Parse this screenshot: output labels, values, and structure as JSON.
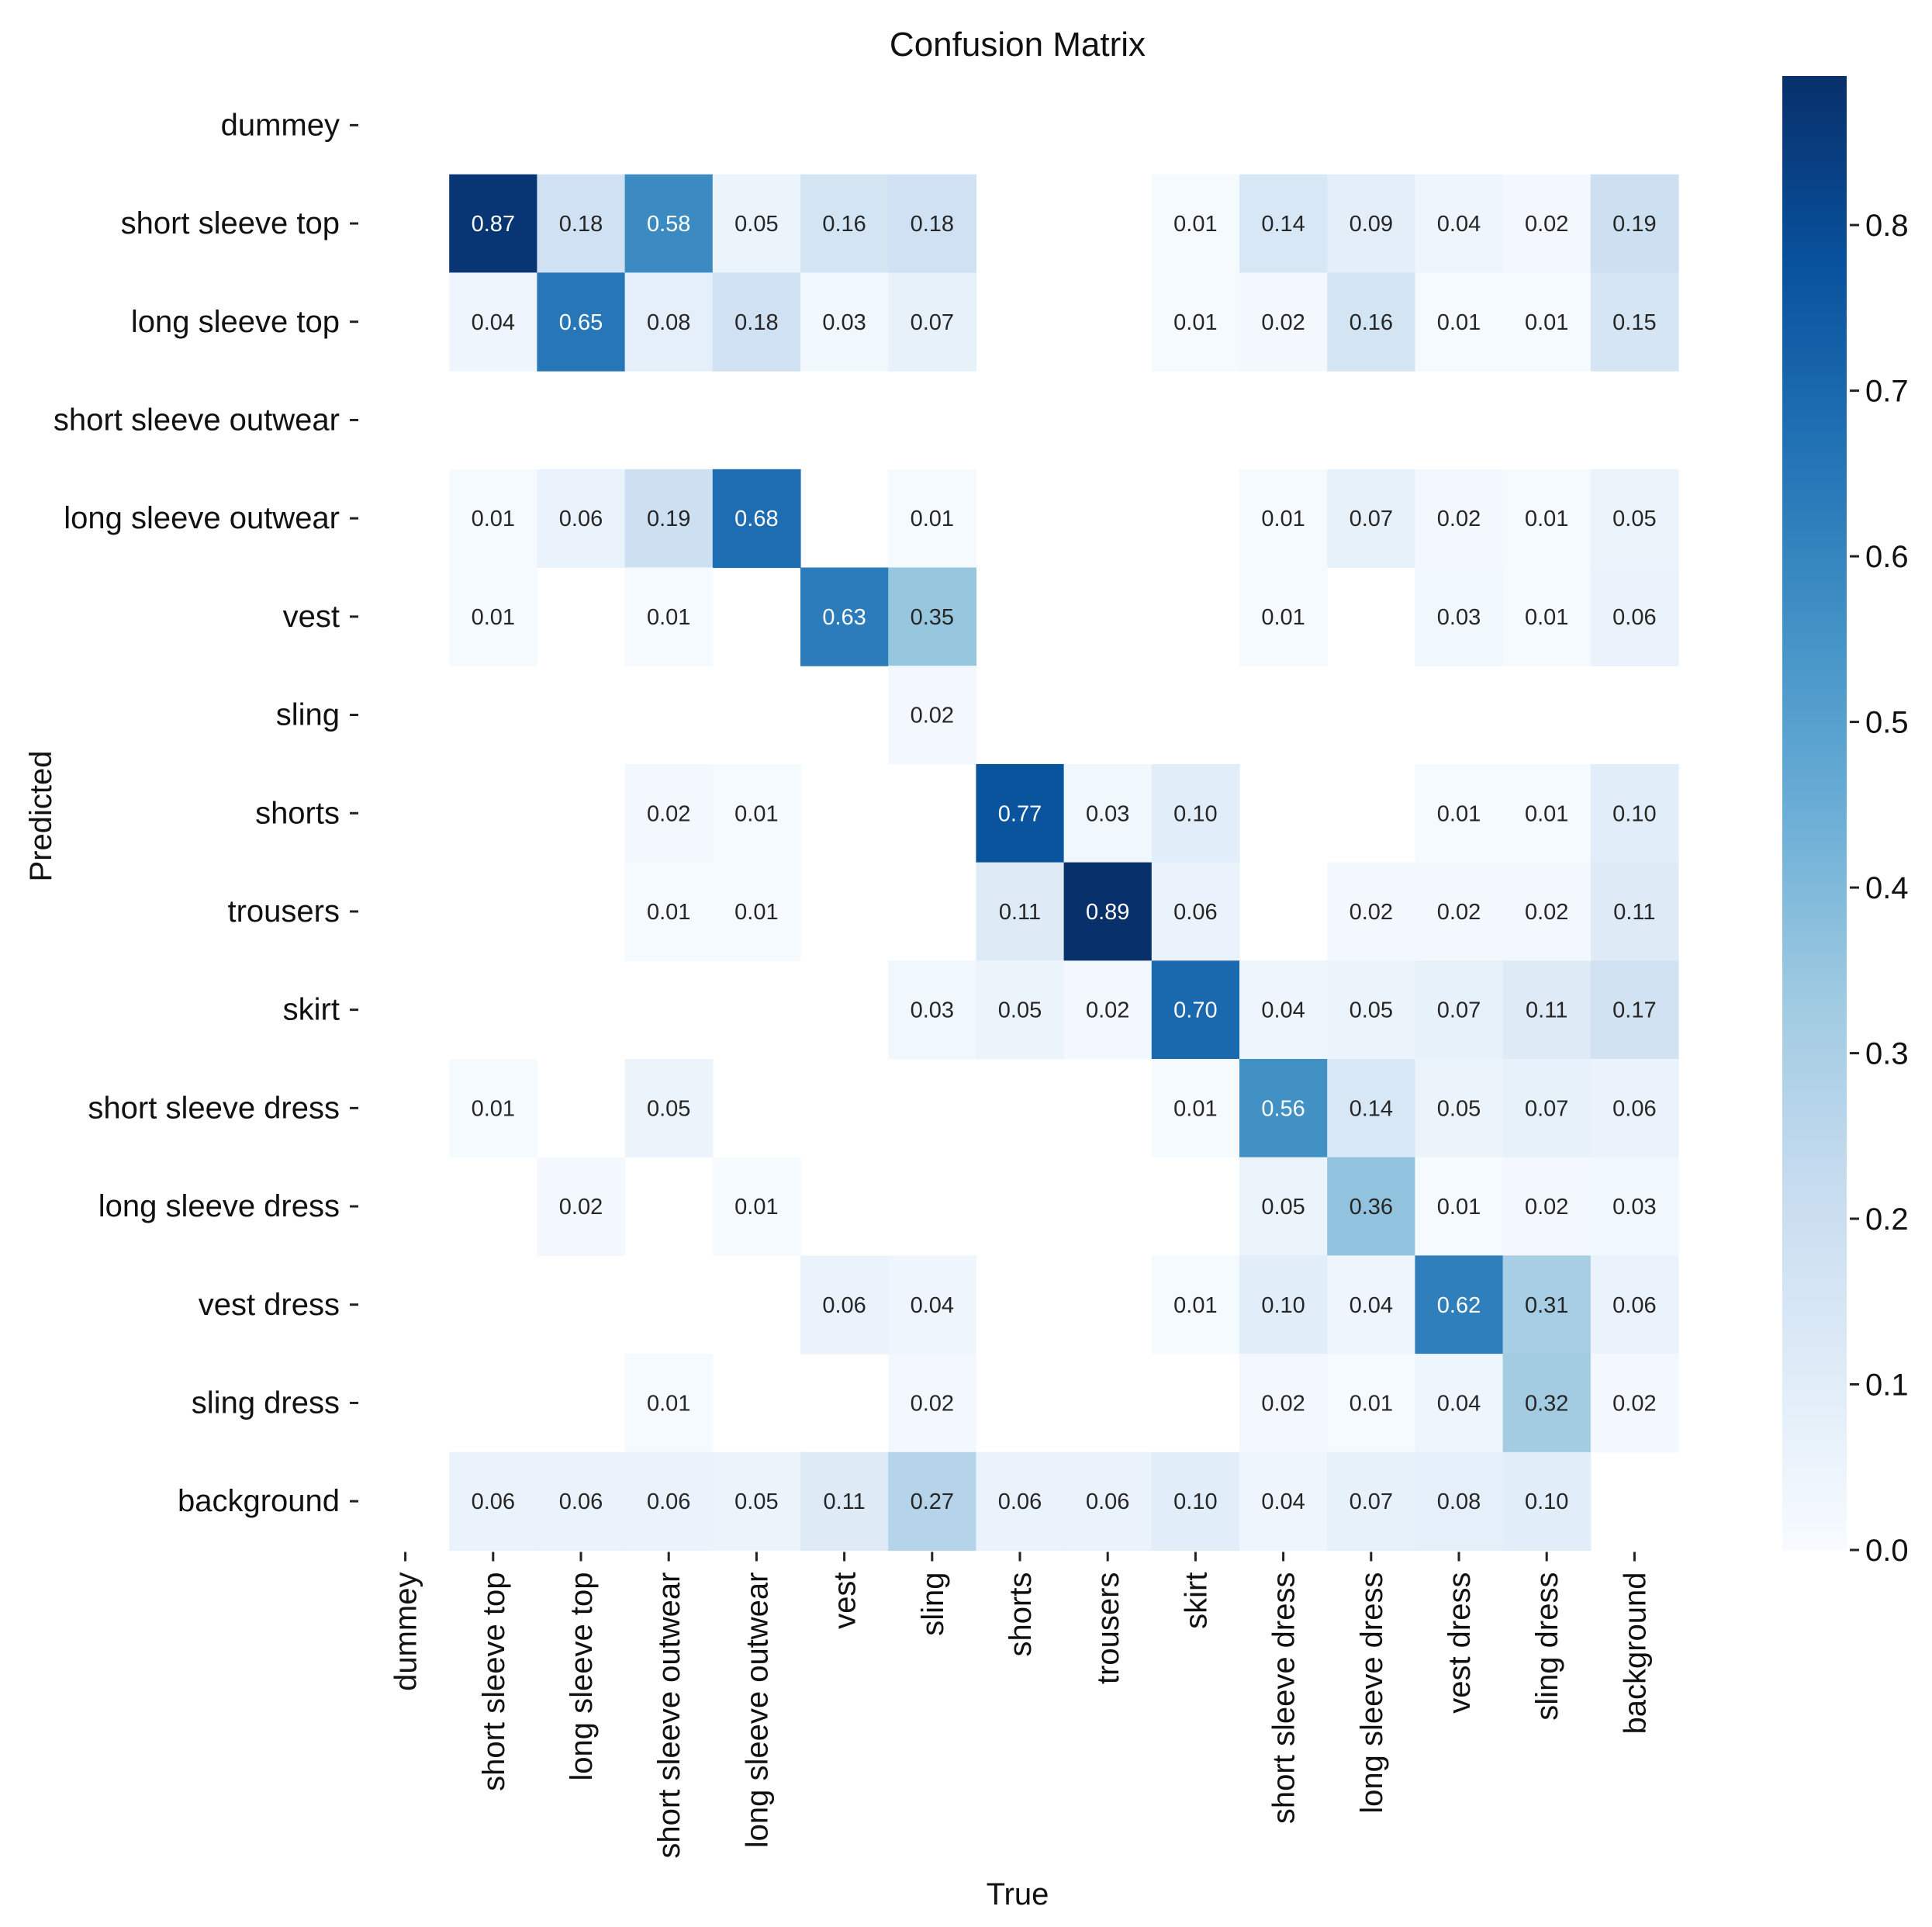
{
  "chart_data": {
    "type": "heatmap",
    "title": "Confusion Matrix",
    "xlabel": "True",
    "ylabel": "Predicted",
    "labels": [
      "dummey",
      "short sleeve top",
      "long sleeve top",
      "short sleeve outwear",
      "long sleeve outwear",
      "vest",
      "sling",
      "shorts",
      "trousers",
      "skirt",
      "short sleeve dress",
      "long sleeve dress",
      "vest dress",
      "sling dress",
      "background"
    ],
    "colorscale": "Blues",
    "vmin": 0.0,
    "vmax": 0.89,
    "colorbar_ticks": [
      "0.0",
      "0.1",
      "0.2",
      "0.3",
      "0.4",
      "0.5",
      "0.6",
      "0.7",
      "0.8"
    ],
    "matrix": [
      [
        null,
        null,
        null,
        null,
        null,
        null,
        null,
        null,
        null,
        null,
        null,
        null,
        null,
        null,
        null
      ],
      [
        null,
        0.87,
        0.18,
        0.58,
        0.05,
        0.16,
        0.18,
        null,
        null,
        0.01,
        0.14,
        0.09,
        0.04,
        0.02,
        0.19
      ],
      [
        null,
        0.04,
        0.65,
        0.08,
        0.18,
        0.03,
        0.07,
        null,
        null,
        0.01,
        0.02,
        0.16,
        0.01,
        0.01,
        0.15
      ],
      [
        null,
        null,
        null,
        null,
        null,
        null,
        null,
        null,
        null,
        null,
        null,
        null,
        null,
        null,
        null
      ],
      [
        null,
        0.01,
        0.06,
        0.19,
        0.68,
        null,
        0.01,
        null,
        null,
        null,
        0.01,
        0.07,
        0.02,
        0.01,
        0.05
      ],
      [
        null,
        0.01,
        null,
        0.01,
        null,
        0.63,
        0.35,
        null,
        null,
        null,
        0.01,
        null,
        0.03,
        0.01,
        0.06
      ],
      [
        null,
        null,
        null,
        null,
        null,
        null,
        0.02,
        null,
        null,
        null,
        null,
        null,
        null,
        null,
        null
      ],
      [
        null,
        null,
        null,
        0.02,
        0.01,
        null,
        null,
        0.77,
        0.03,
        0.1,
        null,
        null,
        0.01,
        0.01,
        0.1
      ],
      [
        null,
        null,
        null,
        0.01,
        0.01,
        null,
        null,
        0.11,
        0.89,
        0.06,
        null,
        0.02,
        0.02,
        0.02,
        0.11
      ],
      [
        null,
        null,
        null,
        null,
        null,
        null,
        0.03,
        0.05,
        0.02,
        0.7,
        0.04,
        0.05,
        0.07,
        0.11,
        0.17
      ],
      [
        null,
        0.01,
        null,
        0.05,
        null,
        null,
        null,
        null,
        null,
        0.01,
        0.56,
        0.14,
        0.05,
        0.07,
        0.06
      ],
      [
        null,
        null,
        0.02,
        null,
        0.01,
        null,
        null,
        null,
        null,
        null,
        0.05,
        0.36,
        0.01,
        0.02,
        0.03
      ],
      [
        null,
        null,
        null,
        null,
        null,
        0.06,
        0.04,
        null,
        null,
        0.01,
        0.1,
        0.04,
        0.62,
        0.31,
        0.06
      ],
      [
        null,
        null,
        null,
        0.01,
        null,
        null,
        0.02,
        null,
        null,
        null,
        0.02,
        0.01,
        0.04,
        0.32,
        0.02
      ],
      [
        null,
        0.06,
        0.06,
        0.06,
        0.05,
        0.11,
        0.27,
        0.06,
        0.06,
        0.1,
        0.04,
        0.07,
        0.08,
        0.1,
        null
      ]
    ]
  }
}
